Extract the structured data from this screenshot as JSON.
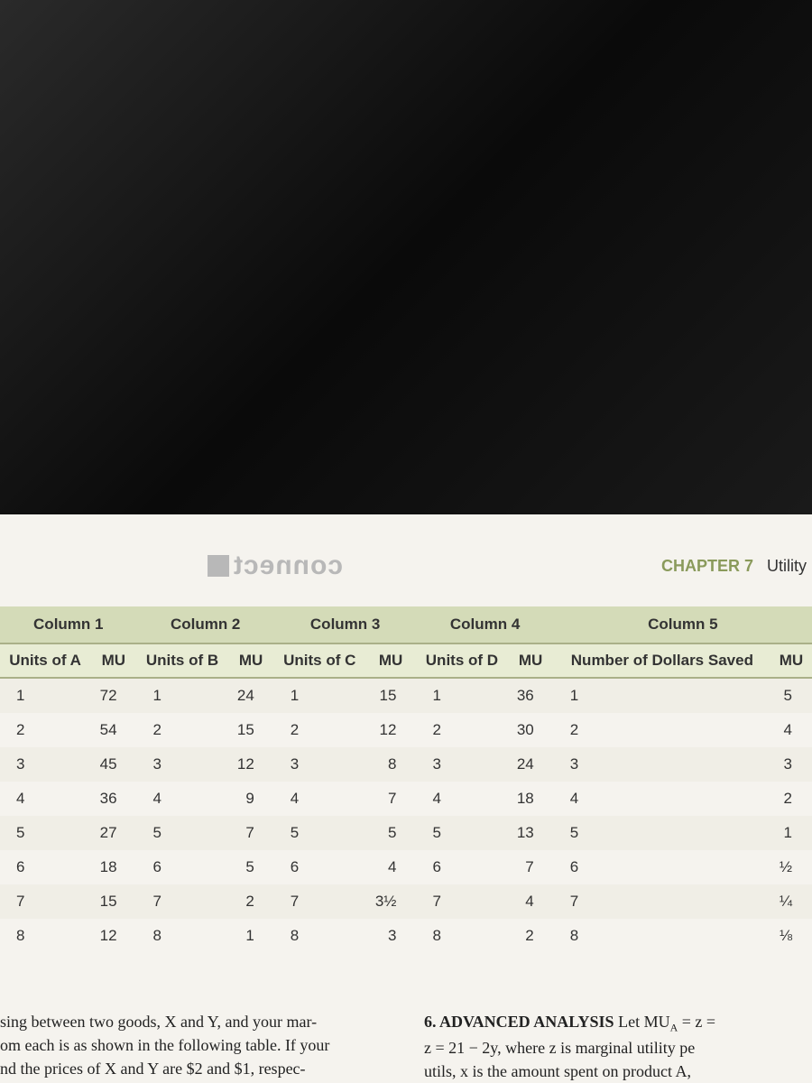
{
  "header": {
    "logo_text": "connect",
    "chapter_label": "CHAPTER 7",
    "chapter_topic": "Utility"
  },
  "table": {
    "group_headers": [
      "Column 1",
      "Column 2",
      "Column 3",
      "Column 4",
      "Column 5"
    ],
    "sub_headers": {
      "c1a": "Units of A",
      "c1b": "MU",
      "c2a": "Units of B",
      "c2b": "MU",
      "c3a": "Units of C",
      "c3b": "MU",
      "c4a": "Units of D",
      "c4b": "MU",
      "c5a": "Number of Dollars Saved",
      "c5b": "MU"
    },
    "rows": [
      {
        "a": "1",
        "amu": "72",
        "b": "1",
        "bmu": "24",
        "c": "1",
        "cmu": "15",
        "d": "1",
        "dmu": "36",
        "s": "1",
        "smu": "5"
      },
      {
        "a": "2",
        "amu": "54",
        "b": "2",
        "bmu": "15",
        "c": "2",
        "cmu": "12",
        "d": "2",
        "dmu": "30",
        "s": "2",
        "smu": "4"
      },
      {
        "a": "3",
        "amu": "45",
        "b": "3",
        "bmu": "12",
        "c": "3",
        "cmu": "8",
        "d": "3",
        "dmu": "24",
        "s": "3",
        "smu": "3"
      },
      {
        "a": "4",
        "amu": "36",
        "b": "4",
        "bmu": "9",
        "c": "4",
        "cmu": "7",
        "d": "4",
        "dmu": "18",
        "s": "4",
        "smu": "2"
      },
      {
        "a": "5",
        "amu": "27",
        "b": "5",
        "bmu": "7",
        "c": "5",
        "cmu": "5",
        "d": "5",
        "dmu": "13",
        "s": "5",
        "smu": "1"
      },
      {
        "a": "6",
        "amu": "18",
        "b": "6",
        "bmu": "5",
        "c": "6",
        "cmu": "4",
        "d": "6",
        "dmu": "7",
        "s": "6",
        "smu": "½"
      },
      {
        "a": "7",
        "amu": "15",
        "b": "7",
        "bmu": "2",
        "c": "7",
        "cmu": "3½",
        "d": "7",
        "dmu": "4",
        "s": "7",
        "smu": "¼"
      },
      {
        "a": "8",
        "amu": "12",
        "b": "8",
        "bmu": "1",
        "c": "8",
        "cmu": "3",
        "d": "8",
        "dmu": "2",
        "s": "8",
        "smu": "⅛"
      }
    ]
  },
  "body": {
    "left_l1": "sing between two goods, X and Y, and your mar-",
    "left_l2": "om each is as shown in the following table. If your",
    "left_l3": "nd the prices of X and Y are $2 and $1, respec-",
    "right_title": "6.  ADVANCED ANALYSIS",
    "right_l1a": "Let MU",
    "right_l1b": " = z =",
    "right_sub": "A",
    "right_l2": "z = 21 − 2y, where z is marginal utility pe",
    "right_l3": "utils, x is the amount spent on product A,"
  },
  "styling": {
    "page_bg": "#f5f3ee",
    "header_band_bg": "#d4dbb8",
    "subheader_band_bg": "#e8ecd4",
    "row_alt_bg": "#f0eee6",
    "border_color": "#aab088",
    "logo_color": "#b8b8b8",
    "chapter_color": "#8a9a5b",
    "text_color": "#333",
    "body_font": "Times New Roman",
    "table_font": "Arial",
    "table_fontsize": 17,
    "body_fontsize": 18,
    "header_fontsize": 18,
    "logo_fontsize": 30
  }
}
